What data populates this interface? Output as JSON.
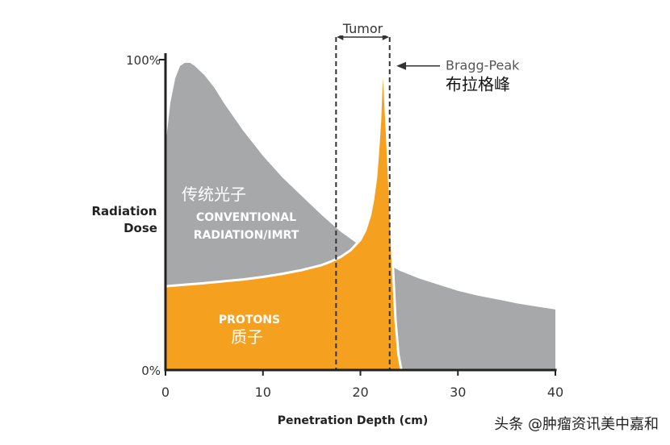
{
  "chart_data": {
    "type": "area",
    "x_range": [
      0,
      40
    ],
    "y_range": [
      0,
      100
    ],
    "y_unit": "%",
    "xlabel": "Penetration Depth (cm)",
    "ylabel_line1": "Radiation",
    "ylabel_line2": "Dose",
    "x_ticks": [
      "0",
      "10",
      "20",
      "30",
      "40"
    ],
    "y_ticks": {
      "top": "100%",
      "bottom": "0%"
    },
    "grid": false,
    "tumor": {
      "label": "Tumor",
      "x_start": 17.5,
      "x_end": 23
    },
    "bragg_peak": {
      "label_en": "Bragg-Peak",
      "label_zh": "布拉格峰",
      "x": 22.2,
      "y": 98
    },
    "series": [
      {
        "name_zh": "传统光子",
        "name_line1": "CONVENTIONAL",
        "name_line2": "RADIATION/IMRT",
        "color": "#a7a8aa",
        "x": [
          0,
          0.5,
          1,
          1.5,
          2,
          2.5,
          3,
          4,
          5,
          6,
          8,
          10,
          12,
          14,
          16,
          18,
          20,
          22,
          24,
          26,
          28,
          30,
          32,
          34,
          36,
          38,
          40
        ],
        "y": [
          72,
          86,
          94,
          98,
          99,
          99,
          98,
          95,
          91,
          86,
          77,
          69,
          62,
          56,
          50,
          44.5,
          40,
          35.5,
          32,
          29.5,
          27.5,
          25.5,
          24,
          22.8,
          21.5,
          20.5,
          19.5
        ]
      },
      {
        "name_line1": "PROTONS",
        "name_zh": "质子",
        "color": "#f5a01f",
        "x": [
          0,
          2,
          4,
          6,
          8,
          10,
          12,
          14,
          16,
          17,
          18,
          19,
          20,
          20.5,
          21,
          21.3,
          21.6,
          21.8,
          22,
          22.1,
          22.2,
          22.35,
          22.5,
          22.7,
          23,
          23.3,
          23.6,
          23.9,
          24.2
        ],
        "y": [
          27,
          27.5,
          28,
          28.6,
          29.2,
          30,
          31,
          32.2,
          33.8,
          35,
          36.5,
          38.6,
          42,
          45,
          50,
          55,
          62,
          70,
          80,
          88,
          96,
          98,
          90,
          78,
          58,
          36,
          16,
          5,
          0
        ]
      }
    ]
  },
  "watermark": "头条 @肿瘤资讯美中嘉和"
}
